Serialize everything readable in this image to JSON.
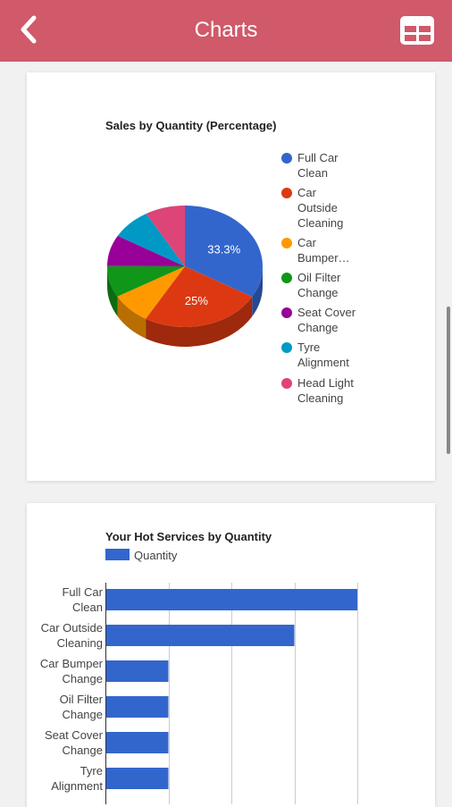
{
  "header": {
    "title": "Charts"
  },
  "pie_chart": {
    "legend": [
      {
        "line1": "Full Car",
        "line2": "Clean"
      },
      {
        "line1": "Car",
        "line2": "Outside",
        "line3": "Cleaning"
      },
      {
        "line1": "Car",
        "line2": "Bumper…"
      },
      {
        "line1": "Oil Filter",
        "line2": "Change"
      },
      {
        "line1": "Seat Cover",
        "line2": "Change"
      },
      {
        "line1": "Tyre",
        "line2": "Alignment"
      },
      {
        "line1": "Head Light",
        "line2": "Cleaning"
      }
    ]
  },
  "bar_chart": {
    "legend_label": "Quantity",
    "category_lines": [
      [
        "Full Car",
        "Clean"
      ],
      [
        "Car Outside",
        "Cleaning"
      ],
      [
        "Car Bumper",
        "Change"
      ],
      [
        "Oil Filter",
        "Change"
      ],
      [
        "Seat Cover",
        "Change"
      ],
      [
        "Tyre",
        "Alignment"
      ]
    ]
  },
  "chart_data": [
    {
      "type": "pie",
      "title": "Sales by Quantity (Percentage)",
      "categories": [
        "Full Car Clean",
        "Car Outside Cleaning",
        "Car Bumper…",
        "Oil Filter Change",
        "Seat Cover Change",
        "Tyre Alignment",
        "Head Light Cleaning"
      ],
      "values": [
        33.3,
        25,
        8.3,
        8.3,
        8.3,
        8.3,
        8.3
      ],
      "data_labels": [
        "33.3%",
        "25%",
        "",
        "",
        "",
        "",
        ""
      ],
      "colors": [
        "#3366cc",
        "#dc3912",
        "#ff9900",
        "#109618",
        "#990099",
        "#0099c6",
        "#dd4477"
      ],
      "legend_position": "right"
    },
    {
      "type": "bar",
      "title": "Your Hot Services by Quantity",
      "categories": [
        "Full Car Clean",
        "Car Outside Cleaning",
        "Car Bumper Change",
        "Oil Filter Change",
        "Seat Cover Change",
        "Tyre Alignment"
      ],
      "series": [
        {
          "name": "Quantity",
          "values": [
            4,
            3,
            1,
            1,
            1,
            1
          ]
        }
      ],
      "xlim": [
        0,
        4
      ],
      "grid": true,
      "color": "#3366cc",
      "legend_position": "top-left"
    }
  ]
}
